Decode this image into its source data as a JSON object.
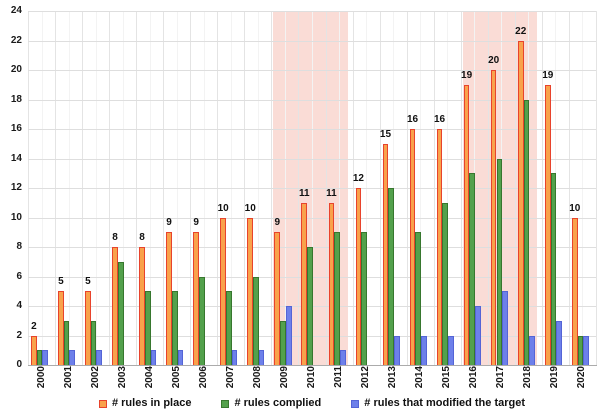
{
  "chart_data": {
    "type": "bar",
    "title": "",
    "xlabel": "",
    "ylabel": "",
    "categories": [
      "2000",
      "2001",
      "2002",
      "2003",
      "2004",
      "2005",
      "2006",
      "2007",
      "2008",
      "2009",
      "2010",
      "2011",
      "2012",
      "2013",
      "2014",
      "2015",
      "2016",
      "2017",
      "2018",
      "2019",
      "2020"
    ],
    "series": [
      {
        "name": "# rules in place",
        "fill": "#F9A24B",
        "border": "#E8432C",
        "values": [
          2,
          5,
          5,
          8,
          8,
          9,
          9,
          10,
          10,
          9,
          11,
          11,
          12,
          15,
          16,
          16,
          19,
          20,
          22,
          19,
          10
        ]
      },
      {
        "name": "# rules complied",
        "fill": "#53A14C",
        "border": "#37772E",
        "values": [
          1,
          3,
          3,
          7,
          5,
          5,
          6,
          5,
          6,
          3,
          8,
          9,
          9,
          12,
          9,
          11,
          13,
          14,
          18,
          13,
          2
        ]
      },
      {
        "name": "# rules that modified the target",
        "fill": "#6D80EA",
        "border": "#5464D6",
        "values": [
          1,
          1,
          1,
          0,
          1,
          1,
          0,
          1,
          1,
          4,
          0,
          1,
          0,
          2,
          2,
          2,
          4,
          5,
          2,
          3,
          2
        ]
      }
    ],
    "value_labels_on_series": "# rules in place",
    "ylim": [
      0,
      24
    ],
    "yticks": [
      0,
      2,
      4,
      6,
      8,
      10,
      12,
      14,
      16,
      18,
      20,
      22,
      24
    ],
    "grid": true,
    "legend_position": "bottom",
    "highlight_color": "#FADCD6",
    "highlight_bands": [
      {
        "from": "2009",
        "to": "2011"
      },
      {
        "from": "2016",
        "to": "2018"
      }
    ]
  }
}
